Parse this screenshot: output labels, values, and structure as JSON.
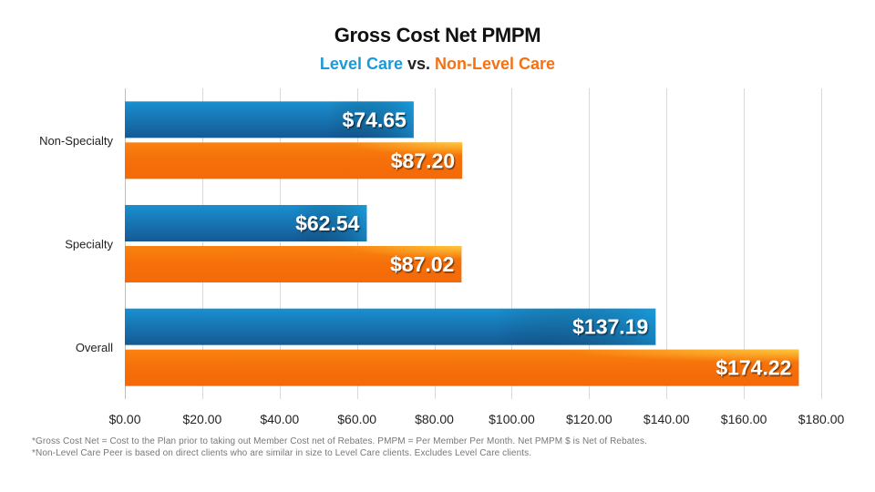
{
  "chart_data": {
    "type": "bar",
    "orientation": "horizontal",
    "title": "Gross Cost Net PMPM",
    "subtitle": {
      "part1": "Level Care",
      "part2": " vs. ",
      "part3": "Non-Level Care"
    },
    "categories": [
      "Non-Specialty",
      "Specialty",
      "Overall"
    ],
    "series": [
      {
        "name": "Level Care",
        "color": "#1a8fd0",
        "values": [
          74.65,
          62.54,
          137.19
        ],
        "labels": [
          "$74.65",
          "$62.54",
          "$137.19"
        ]
      },
      {
        "name": "Non-Level Care",
        "color": "#f47216",
        "values": [
          87.2,
          87.02,
          174.22
        ],
        "labels": [
          "$87.20",
          "$87.02",
          "$174.22"
        ]
      }
    ],
    "xlim": [
      0,
      180
    ],
    "xticks": [
      0,
      20,
      40,
      60,
      80,
      100,
      120,
      140,
      160,
      180
    ],
    "xtick_labels": [
      "$0.00",
      "$20.00",
      "$40.00",
      "$60.00",
      "$80.00",
      "$100.00",
      "$120.00",
      "$140.00",
      "$160.00",
      "$180.00"
    ],
    "xlabel": "",
    "ylabel": "",
    "grid": "vertical",
    "legend": "none (encoded in subtitle colors)"
  },
  "footnotes": [
    "*Gross Cost Net = Cost to the Plan prior to taking out Member Cost net of Rebates. PMPM = Per Member Per Month. Net PMPM $ is Net of Rebates.",
    "*Non-Level Care Peer is based on direct clients who are similar in size to Level Care clients. Excludes Level Care clients."
  ]
}
